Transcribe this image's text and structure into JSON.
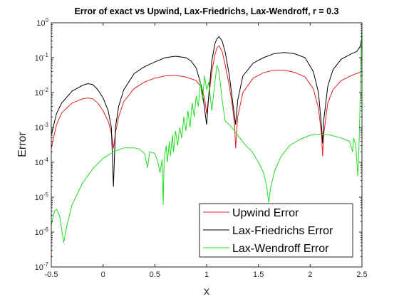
{
  "chart_data": {
    "type": "line",
    "title": "Error of exact vs Upwind, Lax-Friedrichs, Lax-Wendroff, r = 0.3",
    "xlabel": "x",
    "ylabel": "Error",
    "xlim": [
      -0.5,
      2.5
    ],
    "ylim_exponents": [
      -7,
      0
    ],
    "yscale": "log",
    "grid": false,
    "legend_position": "bottom-right",
    "x_ticks": [
      -0.5,
      0,
      0.5,
      1,
      1.5,
      2,
      2.5
    ],
    "x_tick_labels": [
      "-0.5",
      "0",
      "0.5",
      "1",
      "1.5",
      "2",
      "2.5"
    ],
    "y_tick_exponents": [
      -7,
      -6,
      -5,
      -4,
      -3,
      -2,
      -1,
      0
    ],
    "y_tick_base": "10",
    "series": [
      {
        "name": "Upwind Error",
        "color": "#e02020",
        "points": [
          [
            -0.5,
            0.00025
          ],
          [
            -0.45,
            0.0012
          ],
          [
            -0.4,
            0.0026
          ],
          [
            -0.3,
            0.005
          ],
          [
            -0.2,
            0.0066
          ],
          [
            -0.15,
            0.007
          ],
          [
            -0.1,
            0.0066
          ],
          [
            -0.05,
            0.005
          ],
          [
            0.0,
            0.003
          ],
          [
            0.05,
            0.0015
          ],
          [
            0.08,
            0.0007
          ],
          [
            0.1,
            0.00025
          ],
          [
            0.12,
            0.0007
          ],
          [
            0.15,
            0.002
          ],
          [
            0.2,
            0.0055
          ],
          [
            0.3,
            0.013
          ],
          [
            0.4,
            0.02
          ],
          [
            0.5,
            0.026
          ],
          [
            0.6,
            0.03
          ],
          [
            0.7,
            0.031
          ],
          [
            0.8,
            0.028
          ],
          [
            0.9,
            0.022
          ],
          [
            0.95,
            0.014
          ],
          [
            0.98,
            0.007
          ],
          [
            1.0,
            0.0025
          ],
          [
            1.02,
            0.007
          ],
          [
            1.05,
            0.04
          ],
          [
            1.08,
            0.12
          ],
          [
            1.1,
            0.19
          ],
          [
            1.12,
            0.22
          ],
          [
            1.15,
            0.15
          ],
          [
            1.18,
            0.06
          ],
          [
            1.22,
            0.015
          ],
          [
            1.25,
            0.004
          ],
          [
            1.27,
            0.0012
          ],
          [
            1.28,
            0.00025
          ],
          [
            1.3,
            0.002
          ],
          [
            1.35,
            0.01
          ],
          [
            1.45,
            0.026
          ],
          [
            1.55,
            0.037
          ],
          [
            1.65,
            0.044
          ],
          [
            1.75,
            0.044
          ],
          [
            1.85,
            0.038
          ],
          [
            1.95,
            0.028
          ],
          [
            2.03,
            0.013
          ],
          [
            2.08,
            0.0035
          ],
          [
            2.11,
            0.0006
          ],
          [
            2.12,
            0.00015
          ],
          [
            2.13,
            0.0006
          ],
          [
            2.17,
            0.005
          ],
          [
            2.22,
            0.012
          ],
          [
            2.3,
            0.022
          ],
          [
            2.4,
            0.031
          ],
          [
            2.5,
            0.04
          ]
        ]
      },
      {
        "name": "Lax-Friedrichs Error",
        "color": "#000000",
        "points": [
          [
            -0.5,
            0.0006
          ],
          [
            -0.45,
            0.0025
          ],
          [
            -0.4,
            0.005
          ],
          [
            -0.3,
            0.011
          ],
          [
            -0.2,
            0.016
          ],
          [
            -0.15,
            0.018
          ],
          [
            -0.1,
            0.017
          ],
          [
            -0.05,
            0.012
          ],
          [
            0.0,
            0.007
          ],
          [
            0.05,
            0.003
          ],
          [
            0.08,
            0.001
          ],
          [
            0.1,
            2e-05
          ],
          [
            0.12,
            0.001
          ],
          [
            0.15,
            0.004
          ],
          [
            0.2,
            0.012
          ],
          [
            0.3,
            0.035
          ],
          [
            0.4,
            0.055
          ],
          [
            0.5,
            0.075
          ],
          [
            0.6,
            0.1
          ],
          [
            0.7,
            0.11
          ],
          [
            0.8,
            0.1
          ],
          [
            0.85,
            0.08
          ],
          [
            0.9,
            0.05
          ],
          [
            0.95,
            0.015
          ],
          [
            0.98,
            0.0035
          ],
          [
            1.0,
            0.0012
          ],
          [
            1.02,
            0.008
          ],
          [
            1.05,
            0.08
          ],
          [
            1.08,
            0.25
          ],
          [
            1.1,
            0.35
          ],
          [
            1.12,
            0.4
          ],
          [
            1.15,
            0.3
          ],
          [
            1.18,
            0.14
          ],
          [
            1.22,
            0.03
          ],
          [
            1.25,
            0.006
          ],
          [
            1.28,
            0.0012
          ],
          [
            1.3,
            0.006
          ],
          [
            1.35,
            0.03
          ],
          [
            1.45,
            0.07
          ],
          [
            1.55,
            0.1
          ],
          [
            1.65,
            0.13
          ],
          [
            1.75,
            0.14
          ],
          [
            1.85,
            0.13
          ],
          [
            1.95,
            0.1
          ],
          [
            2.03,
            0.04
          ],
          [
            2.08,
            0.01
          ],
          [
            2.11,
            0.001
          ],
          [
            2.12,
            0.00035
          ],
          [
            2.13,
            0.0015
          ],
          [
            2.17,
            0.015
          ],
          [
            2.22,
            0.045
          ],
          [
            2.3,
            0.09
          ],
          [
            2.4,
            0.13
          ],
          [
            2.45,
            0.15
          ],
          [
            2.48,
            0.2
          ],
          [
            2.5,
            0.35
          ]
        ]
      },
      {
        "name": "Lax-Wendroff Error",
        "color": "#20dd20",
        "points": [
          [
            -0.5,
            1.5e-06
          ],
          [
            -0.47,
            4e-06
          ],
          [
            -0.45,
            4.5e-06
          ],
          [
            -0.42,
            3e-06
          ],
          [
            -0.4,
            1.2e-06
          ],
          [
            -0.38,
            5e-07
          ],
          [
            -0.35,
            1.5e-06
          ],
          [
            -0.3,
            6e-06
          ],
          [
            -0.2,
            2.5e-05
          ],
          [
            -0.1,
            6.5e-05
          ],
          [
            0.0,
            0.00013
          ],
          [
            0.1,
            0.0002
          ],
          [
            0.2,
            0.00026
          ],
          [
            0.3,
            0.00026
          ],
          [
            0.35,
            0.00024
          ],
          [
            0.4,
            0.00018
          ],
          [
            0.43,
            7e-05
          ],
          [
            0.45,
            0.0002
          ],
          [
            0.5,
            0.00018
          ],
          [
            0.53,
            0.0001
          ],
          [
            0.55,
            5e-05
          ],
          [
            0.57,
            0.00012
          ],
          [
            0.58,
            6e-06
          ],
          [
            0.59,
            0.00012
          ],
          [
            0.61,
            0.0003
          ],
          [
            0.62,
            0.0001
          ],
          [
            0.64,
            0.0004
          ],
          [
            0.65,
            0.00015
          ],
          [
            0.67,
            0.0006
          ],
          [
            0.68,
            0.0002
          ],
          [
            0.7,
            0.0008
          ],
          [
            0.72,
            0.0003
          ],
          [
            0.74,
            0.001
          ],
          [
            0.76,
            0.0005
          ],
          [
            0.78,
            0.002
          ],
          [
            0.8,
            0.0008
          ],
          [
            0.82,
            0.003
          ],
          [
            0.84,
            0.001
          ],
          [
            0.86,
            0.005
          ],
          [
            0.88,
            0.002
          ],
          [
            0.9,
            0.008
          ],
          [
            0.92,
            0.004
          ],
          [
            0.94,
            0.02
          ],
          [
            0.96,
            0.006
          ],
          [
            0.98,
            0.03
          ],
          [
            1.0,
            0.012
          ],
          [
            1.02,
            0.02
          ],
          [
            1.05,
            0.003
          ],
          [
            1.08,
            0.02
          ],
          [
            1.1,
            0.06
          ],
          [
            1.12,
            0.04
          ],
          [
            1.15,
            0.006
          ],
          [
            1.18,
            0.0015
          ],
          [
            1.22,
            0.0012
          ],
          [
            1.27,
            0.0008
          ],
          [
            1.32,
            0.0005
          ],
          [
            1.38,
            0.0003
          ],
          [
            1.44,
            0.0002
          ],
          [
            1.5,
            0.0001
          ],
          [
            1.55,
            5e-05
          ],
          [
            1.58,
            2e-05
          ],
          [
            1.6,
            7e-06
          ],
          [
            1.62,
            2e-05
          ],
          [
            1.66,
            6e-05
          ],
          [
            1.72,
            0.00015
          ],
          [
            1.8,
            0.0003
          ],
          [
            1.9,
            0.00045
          ],
          [
            2.0,
            0.0006
          ],
          [
            2.1,
            0.00065
          ],
          [
            2.2,
            0.0006
          ],
          [
            2.3,
            0.0005
          ],
          [
            2.38,
            0.0004
          ],
          [
            2.41,
            0.0002
          ],
          [
            2.42,
            0.0005
          ],
          [
            2.44,
            0.0003
          ],
          [
            2.46,
            4e-05
          ],
          [
            2.47,
            0.0002
          ],
          [
            2.48,
            0.003
          ],
          [
            2.49,
            0.08
          ],
          [
            2.5,
            0.9
          ]
        ]
      }
    ]
  }
}
